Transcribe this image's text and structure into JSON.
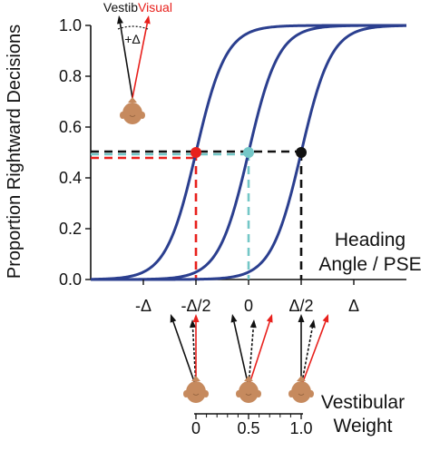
{
  "chart_data": {
    "type": "line",
    "ylabel": "Proportion Rightward Decisions",
    "xlabel": "Heading Angle / PSE",
    "xlabel_lines": [
      "Heading",
      "Angle / PSE"
    ],
    "ylim": [
      0,
      1.0
    ],
    "xlim": [
      -1.5,
      1.5
    ],
    "yticks": [
      0.0,
      0.2,
      0.4,
      0.6,
      0.8,
      1.0
    ],
    "ytick_labels": [
      "0.0",
      "0.2",
      "0.4",
      "0.6",
      "0.8",
      "1.0"
    ],
    "xticks": [
      -1,
      -0.5,
      0,
      0.5,
      1
    ],
    "xtick_labels": [
      "-Δ",
      "-Δ/2",
      "0",
      "Δ/2",
      "Δ"
    ],
    "series": [
      {
        "pse": -0.5,
        "slope": 7.0,
        "color": "#2b3f8f"
      },
      {
        "pse": 0.0,
        "slope": 7.0,
        "color": "#2b3f8f"
      },
      {
        "pse": 0.5,
        "slope": 7.0,
        "color": "#2b3f8f"
      }
    ],
    "pse_points": [
      {
        "x": -0.5,
        "y": 0.5,
        "color": "#e8201c"
      },
      {
        "x": 0.0,
        "y": 0.5,
        "color": "#74c7c7"
      },
      {
        "x": 0.5,
        "y": 0.5,
        "color": "#111111"
      }
    ],
    "grid": false
  },
  "inset": {
    "vestib_label": "Vestib",
    "visual_label": "Visual",
    "delta_label": "+Δ"
  },
  "weight_axis": {
    "label_lines": [
      "Vestibular",
      "Weight"
    ],
    "ticks": [
      0,
      0.5,
      1.0
    ],
    "tick_labels": [
      "0",
      "0.5",
      "1.0"
    ]
  },
  "colors": {
    "curve": "#2b3f8f",
    "visual": "#e8201c",
    "vestibular": "#111111",
    "combined": "#74c7c7",
    "head": "#c68a5e"
  }
}
